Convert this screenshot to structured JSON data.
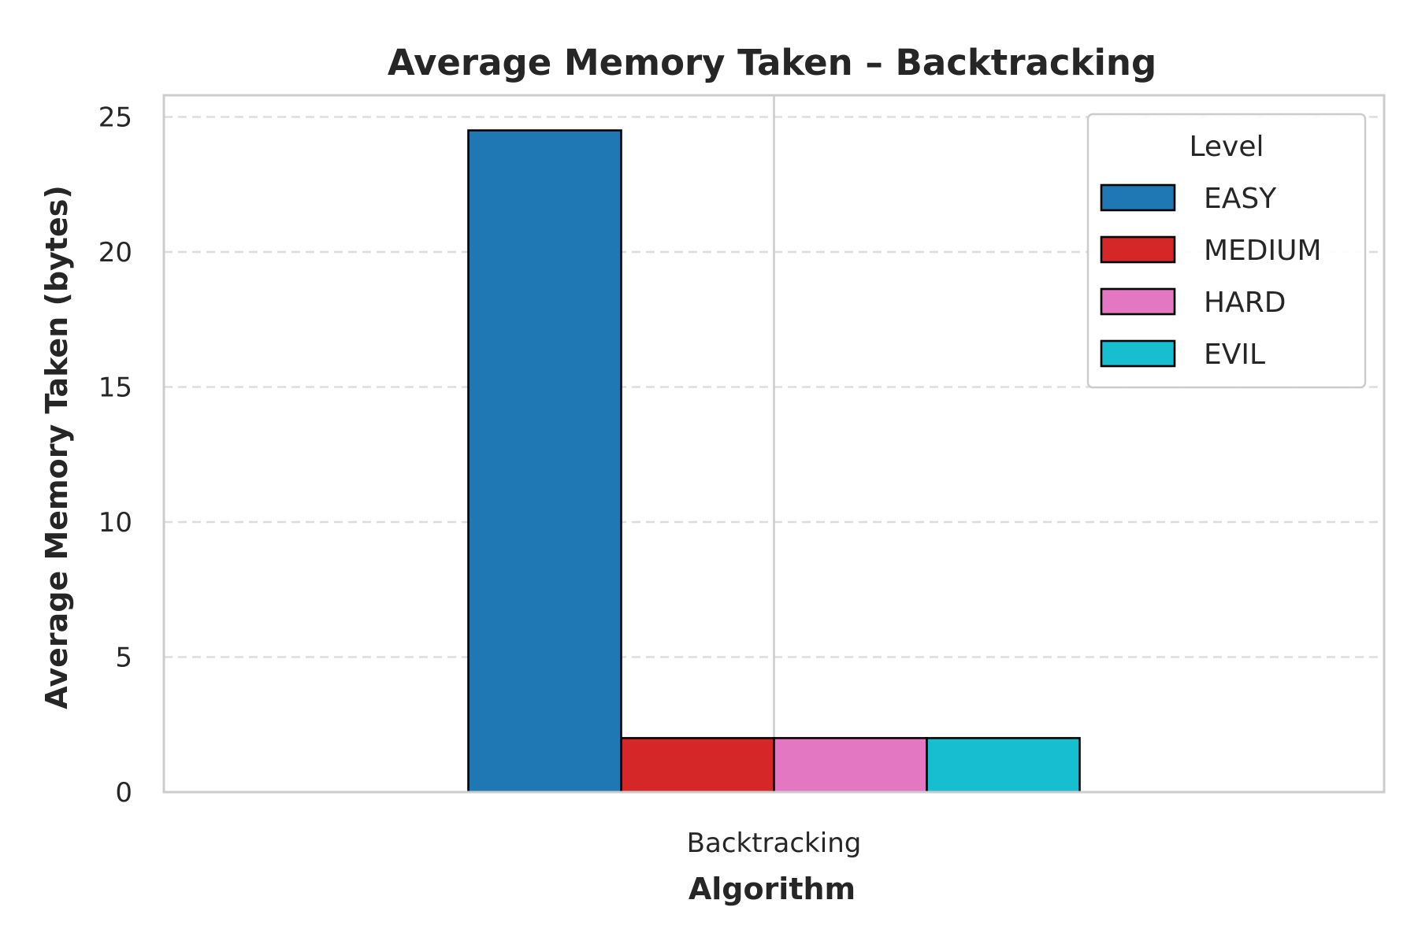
{
  "chart_data": {
    "type": "bar",
    "title": "Average Memory Taken – Backtracking",
    "xlabel": "Algorithm",
    "ylabel": "Average Memory Taken (bytes)",
    "categories": [
      "Backtracking"
    ],
    "series": [
      {
        "name": "EASY",
        "values": [
          24.5
        ],
        "color": "#1f77b4"
      },
      {
        "name": "MEDIUM",
        "values": [
          2.0
        ],
        "color": "#d62728"
      },
      {
        "name": "HARD",
        "values": [
          2.0
        ],
        "color": "#e377c2"
      },
      {
        "name": "EVIL",
        "values": [
          2.0
        ],
        "color": "#17becf"
      }
    ],
    "ylim": [
      0,
      25.8
    ],
    "yticks": [
      0,
      5,
      10,
      15,
      20,
      25
    ],
    "grid": {
      "y": true,
      "y_style": "dashed",
      "x": true,
      "x_style": "solid"
    },
    "legend": {
      "title": "Level",
      "placement": "top-right"
    }
  }
}
